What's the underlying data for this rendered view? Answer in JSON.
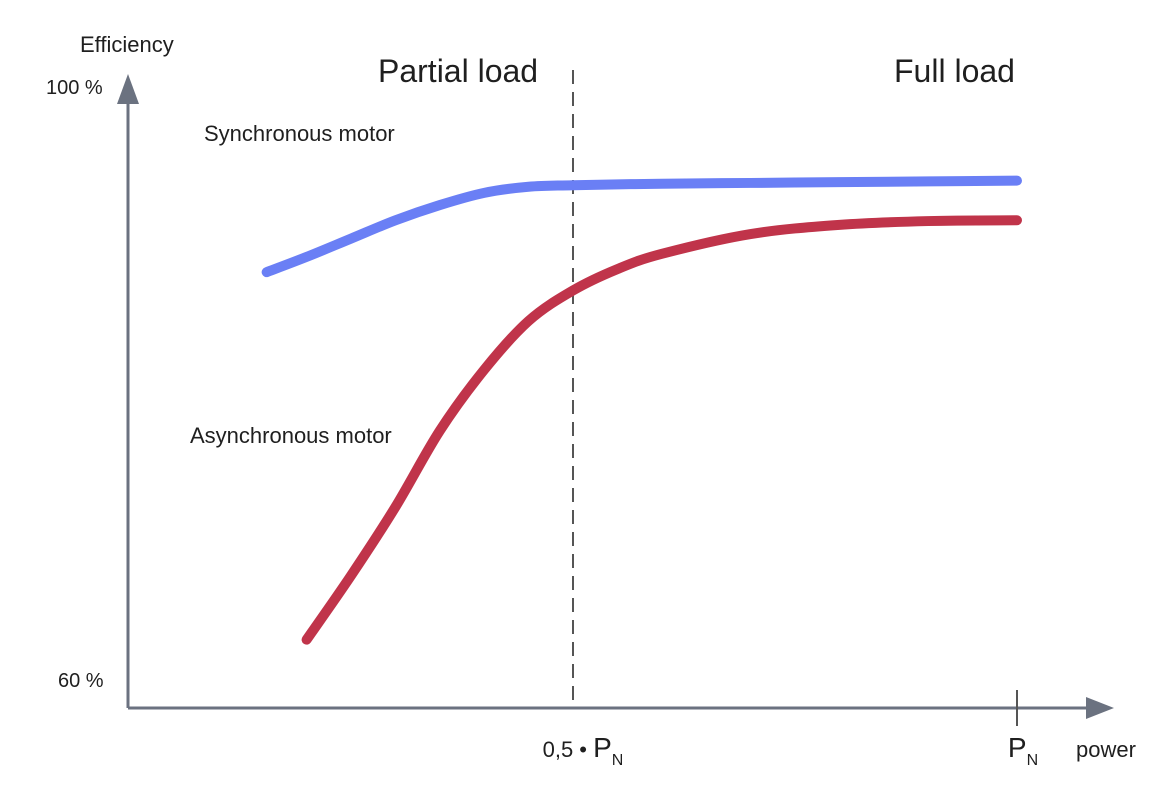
{
  "chart_data": {
    "type": "line",
    "ylabel": "Efficiency",
    "xlabel": "power",
    "y_tick_labels": {
      "top": "100 %",
      "bottom": "60 %"
    },
    "ylim": [
      60,
      100
    ],
    "xlim": [
      0,
      1.0
    ],
    "x_ticks": [
      {
        "x": 0.5,
        "prefix": "0,5 • ",
        "main": "P",
        "sub": "N"
      },
      {
        "x": 1.0,
        "prefix": "",
        "main": "P",
        "sub": "N"
      }
    ],
    "regions": {
      "left": "Partial load",
      "right": "Full load"
    },
    "divider_x": 0.5,
    "grid": false,
    "series": [
      {
        "name": "Synchronous motor",
        "color": "#6a7ff5",
        "points": [
          [
            0.155,
            87.4
          ],
          [
            0.2,
            88.4
          ],
          [
            0.25,
            89.6
          ],
          [
            0.3,
            90.8
          ],
          [
            0.35,
            91.8
          ],
          [
            0.4,
            92.6
          ],
          [
            0.45,
            93.0
          ],
          [
            0.5,
            93.1
          ],
          [
            0.6,
            93.2
          ],
          [
            0.7,
            93.25
          ],
          [
            0.8,
            93.3
          ],
          [
            0.9,
            93.35
          ],
          [
            1.0,
            93.4
          ]
        ]
      },
      {
        "name": "Asynchronous motor",
        "color": "#c0344a",
        "points": [
          [
            0.2,
            63.3
          ],
          [
            0.25,
            67.5
          ],
          [
            0.3,
            72.0
          ],
          [
            0.35,
            77.0
          ],
          [
            0.4,
            81.0
          ],
          [
            0.45,
            84.2
          ],
          [
            0.5,
            86.2
          ],
          [
            0.55,
            87.6
          ],
          [
            0.6,
            88.6
          ],
          [
            0.7,
            89.9
          ],
          [
            0.8,
            90.5
          ],
          [
            0.9,
            90.75
          ],
          [
            1.0,
            90.8
          ]
        ]
      }
    ]
  }
}
